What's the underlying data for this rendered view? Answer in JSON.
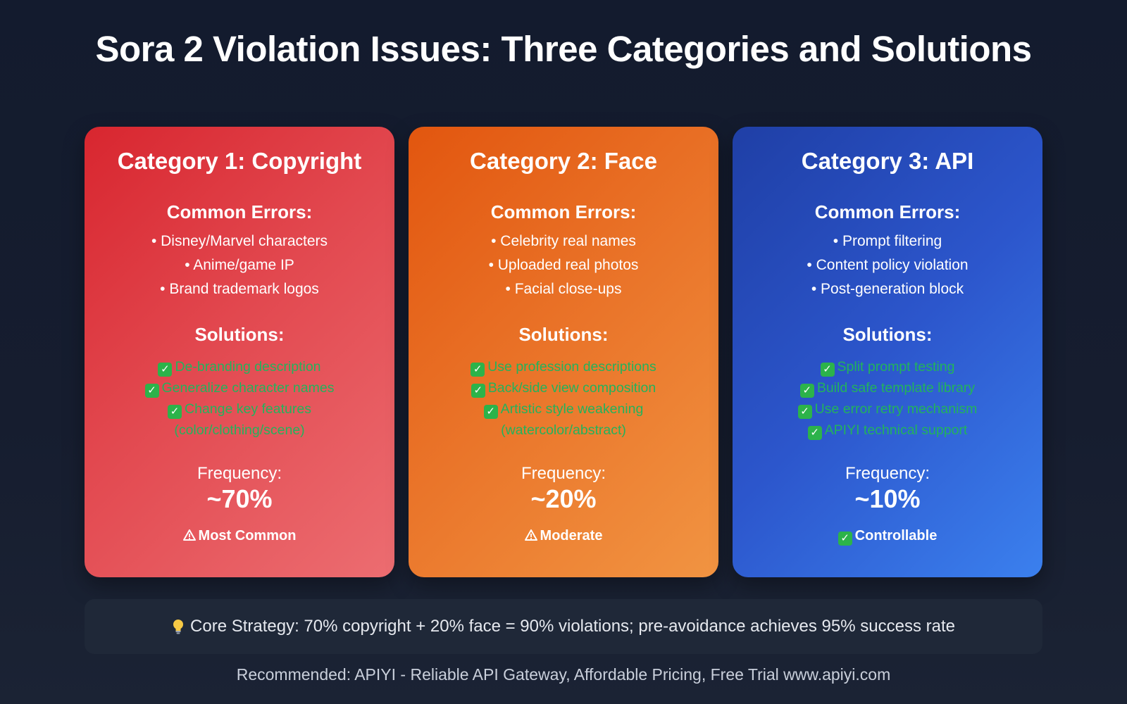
{
  "title": "Sora 2 Violation Issues: Three Categories and Solutions",
  "cards": [
    {
      "title": "Category 1: Copyright",
      "errors_heading": "Common Errors:",
      "errors": [
        "• Disney/Marvel characters",
        "• Anime/game IP",
        "• Brand trademark logos"
      ],
      "solutions_heading": "Solutions:",
      "solutions": [
        "De-branding description",
        "Generalize character names",
        "Change key features",
        "(color/clothing/scene)"
      ],
      "frequency_label": "Frequency:",
      "frequency_value": "~70%",
      "badge_icon": "warning-icon",
      "badge": "Most Common",
      "color": "#d8262f"
    },
    {
      "title": "Category 2: Face",
      "errors_heading": "Common Errors:",
      "errors": [
        "• Celebrity real names",
        "• Uploaded real photos",
        "• Facial close-ups"
      ],
      "solutions_heading": "Solutions:",
      "solutions": [
        "Use profession descriptions",
        "Back/side view composition",
        "Artistic style weakening",
        "(watercolor/abstract)"
      ],
      "frequency_label": "Frequency:",
      "frequency_value": "~20%",
      "badge_icon": "warning-icon",
      "badge": "Moderate",
      "color": "#e2560f"
    },
    {
      "title": "Category 3: API",
      "errors_heading": "Common Errors:",
      "errors": [
        "• Prompt filtering",
        "• Content policy violation",
        "• Post-generation block"
      ],
      "solutions_heading": "Solutions:",
      "solutions": [
        "Split prompt testing",
        "Build safe template library",
        "Use error retry mechanism",
        "APIYI technical support"
      ],
      "frequency_label": "Frequency:",
      "frequency_value": "~10%",
      "badge_icon": "check-icon",
      "badge": "Controllable",
      "color": "#1f3fa6"
    }
  ],
  "strategy": {
    "icon": "lightbulb-icon",
    "text": "Core Strategy: 70% copyright + 20% face = 90% violations; pre-avoidance achieves 95% success rate"
  },
  "recommend": "Recommended: APIYI - Reliable API Gateway, Affordable Pricing, Free Trial www.apiyi.com",
  "colors": {
    "solution_text": "#22b35c",
    "check_box": "#2cb34a",
    "background": "#131b2e"
  }
}
